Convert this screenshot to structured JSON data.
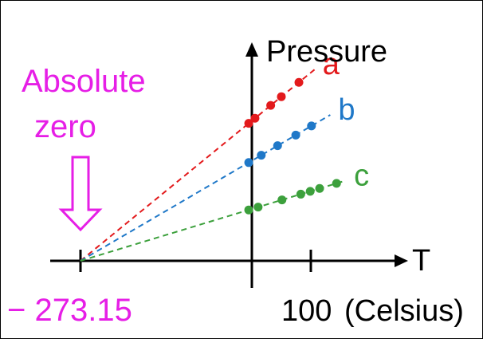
{
  "labels": {
    "y_axis": "Pressure",
    "x_axis": "T",
    "absolute_zero_line1": "Absolute",
    "absolute_zero_line2": "zero",
    "tick_left": "− 273.15",
    "tick_right": "100",
    "unit": "(Celsius)"
  },
  "colors": {
    "annotation": "#e61ee6",
    "axis": "#000000"
  },
  "chart_data": {
    "type": "line",
    "xlabel": "T",
    "ylabel": "Pressure",
    "x_unit": "(Celsius)",
    "xlim": [
      -320,
      180
    ],
    "ylim": [
      0,
      10
    ],
    "x_ticks": [
      -273.15,
      100
    ],
    "extrapolate_to": -273.15,
    "series": [
      {
        "name": "a",
        "color": "#e31a1c",
        "points": [
          [
            -5,
            5.6
          ],
          [
            5,
            6.2
          ],
          [
            30,
            7.0
          ],
          [
            47,
            7.6
          ],
          [
            75,
            8.3
          ]
        ],
        "end": 100
      },
      {
        "name": "b",
        "color": "#1f78c8",
        "points": [
          [
            -5,
            4.0
          ],
          [
            15,
            4.5
          ],
          [
            41,
            5.1
          ],
          [
            70,
            5.8
          ],
          [
            95,
            6.4
          ]
        ],
        "end": 125
      },
      {
        "name": "c",
        "color": "#3ca03c",
        "points": [
          [
            -5,
            2.0
          ],
          [
            10,
            2.3
          ],
          [
            48,
            2.7
          ],
          [
            78,
            3.0
          ],
          [
            93,
            3.2
          ],
          [
            108,
            3.3
          ],
          [
            135,
            3.6
          ]
        ],
        "end": 150
      }
    ]
  }
}
